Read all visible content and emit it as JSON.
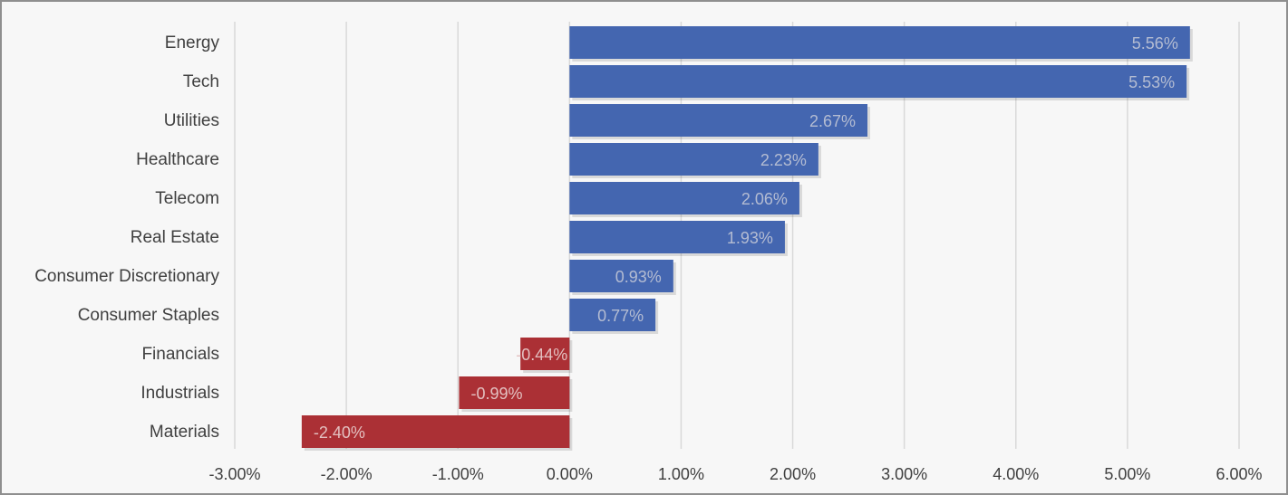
{
  "chart_data": {
    "type": "bar",
    "orientation": "horizontal",
    "categories": [
      "Energy",
      "Tech",
      "Utilities",
      "Healthcare",
      "Telecom",
      "Real Estate",
      "Consumer Discretionary",
      "Consumer Staples",
      "Financials",
      "Industrials",
      "Materials"
    ],
    "values": [
      5.56,
      5.53,
      2.67,
      2.23,
      2.06,
      1.93,
      0.93,
      0.77,
      -0.44,
      -0.99,
      -2.4
    ],
    "data_labels": [
      "5.56%",
      "5.53%",
      "2.67%",
      "2.23%",
      "2.06%",
      "1.93%",
      "0.93%",
      "0.77%",
      "-0.44%",
      "-0.99%",
      "-2.40%"
    ],
    "xlim": [
      -3.0,
      6.0
    ],
    "x_ticks": [
      -3,
      -2,
      -1,
      0,
      1,
      2,
      3,
      4,
      5,
      6
    ],
    "x_tick_labels": [
      "-3.00%",
      "-2.00%",
      "-1.00%",
      "0.00%",
      "1.00%",
      "2.00%",
      "3.00%",
      "4.00%",
      "5.00%",
      "6.00%"
    ],
    "title": "",
    "xlabel": "",
    "ylabel": "",
    "grid": true,
    "legend": "none",
    "colors": {
      "positive": "#4466b0",
      "negative": "#ab3035",
      "grid": "#d9d9d9",
      "text": "#404040",
      "positive_label": "#b4bcd2",
      "negative_label": "#e3c0c0",
      "background": "#f7f7f7"
    }
  }
}
